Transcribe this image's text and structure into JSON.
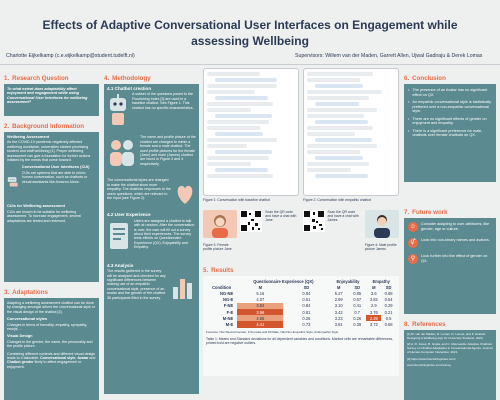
{
  "header": {
    "title_line1": "Effects of Adaptive Conversational User Interfaces on Engagement while",
    "title_line2": "assessing Wellbeing",
    "author": "Charlotte Eijkelkamp (c.e.eijkelkamp@student.tudelft.nl)",
    "supervisors": "Supervisors: Willem van der Maden, Garrett Allen, Ujwal Gadiraju & Derek Lomas"
  },
  "sections": {
    "rq": {
      "num": "1.",
      "title": "Research Question",
      "text": "To what extent does adaptability affect enjoyment and engagement while using Conversational User Interfaces for wellbeing assessment?"
    },
    "background": {
      "num": "2.",
      "title": "Background Information",
      "wa_head": "Wellbeing Assessment",
      "wa_text": "As the COVID-19 pandemic negatively affected wellbeing worldwide, universities started prioritizing student and staff wellbeing [1]. Proper wellbeing assessment can give a foundation for further actions initiated by the needs that come forward.",
      "cui_head": "Conversational User Interfaces (CUI)",
      "cui_text": "CUIs are systems that are able to mimic human conversation, such as chatbots or virtual assistants like Amazon Alexa.",
      "cuis_head": "CUIs for Wellbeing assessment",
      "cuis_text": "CUIs are known to be suitable for wellbeing assessment. To increase engagement, several adaptations are tested and reviewed."
    },
    "adaptations": {
      "num": "3.",
      "title": "Adaptations",
      "intro": "Adapting a wellbeing assessment chatbot can be done by changing amongst others the conversational style or the visual design of the chatbot [2].",
      "cs_head": "Conversational styles",
      "cs_text": "Changes in terms of formality, empathy, sympathy, emojis, ...",
      "vd_head": "Visual Design",
      "vd_text": "Changes in the gender, the name, the personality and the profile picture.",
      "combo_text": "Combining different contexts and different visual design leads to 4 tailorable:",
      "combo_1": "Conversational style",
      "combo_2": "Avatar",
      "combo_3": "Chatbot gender",
      "combo_tail": "likely to affect engagement or enjoyment."
    },
    "method": {
      "num": "4.",
      "title": "Methodology",
      "sub1": "4.1 Chatbot creation",
      "p1": "A subset of the questions posed to the Flourishing Index [3] are used in a baseline chatbot. See Figure 1. This chatbot has no specific characteristics.",
      "p2": "The name and profile picture of the chatbot are changed to mimic a female and a male chatbot. The used profile pictures for the female (Jane) and male (James) chatbot are found in Figure 3 and 4 respectively.",
      "p3": "The conversational styles are changed to make the chatbot show more empathy. The chatbots responses to the users questions, which are relevant to the input (see Figure 2).",
      "sub2": "4.2 User Experience",
      "p4": "Users are assigned a chatbot to talk with at random. After the conversation is over, the user will fill out a survey about their experiences. The survey tests effects on Questionnaire Experience (QX), Enjoyability and Empathy.",
      "sub3": "4.3 Analysis",
      "p5": "The results gathered in the survey will be analyzed and checked for any significant differences between making use of an empathic conversational style, presence of an avatar and the gender of the chatbot. 36 participants filled in the survey."
    },
    "figures": {
      "fig1": "Figure 1: Conversation with baseline chatbot",
      "fig2": "Figure 2: Conversation with empathic chatbot",
      "fig3": "Figure 3: Female profile picture Jane",
      "fig3b": "Scan the QR code and have a chat with Jane",
      "fig4b": "Scan the QR code and have a chat with James",
      "fig4": "Figure 4: Male profile picture James"
    },
    "results": {
      "num": "5.",
      "title": "Results",
      "group_qx": "Questionnaire Experience (QX)",
      "group_enj": "Enjoyability",
      "group_emp": "Empathy",
      "col_cond": "Condition",
      "col_m": "M",
      "col_sd": "SD",
      "rows": [
        {
          "cond": "NG-NE",
          "v": [
            "5.16",
            "0.84",
            "5.27",
            "0.85",
            "3.6",
            "0.68"
          ]
        },
        {
          "cond": "NG-E",
          "v": [
            "4.07",
            "0.61",
            "2.99",
            "0.57",
            "3.82",
            "0.54"
          ]
        },
        {
          "cond": "F-NE",
          "v": [
            "3.84",
            "0.84",
            "3.10",
            "0.41",
            "2.9",
            "0.29"
          ]
        },
        {
          "cond": "F-E",
          "v": [
            "3.96",
            "0.81",
            "3.42",
            "0.7",
            "3.76",
            "0.21"
          ]
        },
        {
          "cond": "M-NE",
          "v": [
            "4.65",
            "0.26",
            "3.23",
            "0.26",
            "2.39",
            "0.5"
          ]
        },
        {
          "cond": "M-E",
          "v": [
            "4.41",
            "0.73",
            "3.81",
            "0.39",
            "3.72",
            "0.68"
          ]
        }
      ],
      "note": "Footnote: NG=Neutral Gender, F=Female and M=Male, NE=Non-Empathic Style, E=Empathic Style",
      "caption": "Table 1: Means and Standard deviations for all dependent variables and conditions. Marked cells are remarkable differences, printed bold are negative outliers."
    },
    "conclusion": {
      "num": "6.",
      "title": "Conclusion",
      "items": [
        "The presence of an Avatar has no significant effect on QX.",
        "An empathic conversational style is statistically preferred over a non-empathic conversational style.",
        "There are no significant effects of gender on enjoyment and empathy.",
        "There is a significant preference for male, chatbots over female chatbots on QX."
      ]
    },
    "future": {
      "num": "7.",
      "title": "Future work",
      "items": [
        "Consider adapting to user-attributes, like gender, age or culture.",
        "Look into non-binary names and avatars.",
        "Look further into the effect of gender on QX."
      ]
    },
    "references": {
      "num": "8.",
      "title": "References",
      "items": [
        "[1] M. van der Maden, E. Lomas, D. Lomas, and P. Hekkert. Designing a Wellbeing-App for University Students. 2020.",
        "[2] A. R. Jones, B. Gupta, and C. Mavroeidis. Adaptive Chatbots. Survey on Chatbot Adaptation in Conversational Agents. Journal of Human-Computer Interaction, 2021.",
        "[3] https://www.flourishingindex.com/",
        "www.flourishingindex.com/survey"
      ]
    }
  }
}
